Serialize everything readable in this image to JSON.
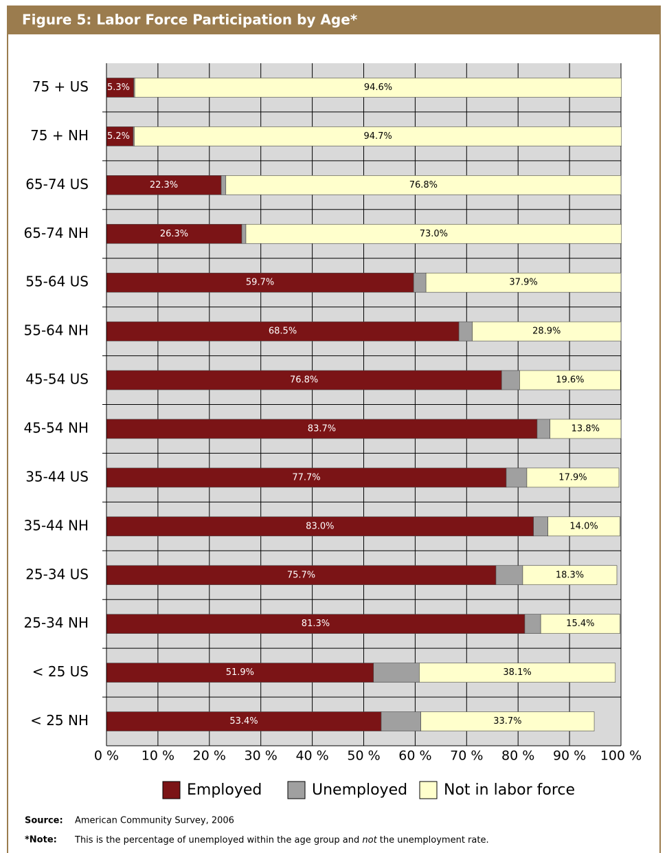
{
  "chart_data": {
    "type": "stacked_barh",
    "title": "Figure 5: Labor Force Participation by Age*",
    "categories": [
      "75 + US",
      "75 + NH",
      "65-74 US",
      "65-74 NH",
      "55-64 US",
      "55-64 NH",
      "45-54 US",
      "45-54 NH",
      "35-44 US",
      "35-44 NH",
      "25-34 US",
      "25-34 NH",
      "< 25 US",
      "< 25 NH"
    ],
    "series": [
      {
        "name": "Employed",
        "color": "#7b1416",
        "values": [
          5.3,
          5.2,
          22.3,
          26.3,
          59.7,
          68.5,
          76.8,
          83.7,
          77.7,
          83.0,
          75.7,
          81.3,
          51.9,
          53.4
        ],
        "value_labels": [
          "5.3%",
          "5.2%",
          "22.3%",
          "26.3%",
          "59.7%",
          "68.5%",
          "76.8%",
          "83.7%",
          "77.7%",
          "83.0%",
          "75.7%",
          "81.3%",
          "51.9%",
          "53.4%"
        ]
      },
      {
        "name": "Unemployed",
        "color": "#a0a0a0",
        "values": [
          0.2,
          0.2,
          0.9,
          0.8,
          2.4,
          2.6,
          3.5,
          2.5,
          4.0,
          2.8,
          5.2,
          3.1,
          8.9,
          7.7
        ],
        "value_labels": [
          "0.2%",
          "0.2%",
          "0.9%",
          "0.8%",
          "2.4%",
          "2.6%",
          "3.5%",
          "2.5%",
          "4.0%",
          "2.8%",
          "5.2%",
          "3.1%",
          "8.9%",
          "7.7%"
        ]
      },
      {
        "name": "Not in labor force",
        "color": "#ffffcc",
        "values": [
          94.6,
          94.7,
          76.8,
          73.0,
          37.9,
          28.9,
          19.6,
          13.8,
          17.9,
          14.0,
          18.3,
          15.4,
          38.1,
          33.7
        ],
        "value_labels": [
          "94.6%",
          "94.7%",
          "76.8%",
          "73.0%",
          "37.9%",
          "28.9%",
          "19.6%",
          "13.8%",
          "17.9%",
          "14.0%",
          "18.3%",
          "15.4%",
          "38.1%",
          "33.7%"
        ]
      }
    ],
    "xlim": [
      0,
      100
    ],
    "xticks": [
      {
        "value": 0,
        "label": "0 %"
      },
      {
        "value": 10,
        "label": "10 %"
      },
      {
        "value": 20,
        "label": "20 %"
      },
      {
        "value": 30,
        "label": "30 %"
      },
      {
        "value": 40,
        "label": "40 %"
      },
      {
        "value": 50,
        "label": "50 %"
      },
      {
        "value": 60,
        "label": "60 %"
      },
      {
        "value": 70,
        "label": "70 %"
      },
      {
        "value": 80,
        "label": "80 %"
      },
      {
        "value": 90,
        "label": "90 %"
      },
      {
        "value": 100,
        "label": "100 %"
      }
    ],
    "grid": true,
    "legend": "bottom",
    "source_label": "Source:",
    "source": "American Community Survey, 2006",
    "note_label": "*Note:",
    "note_parts": [
      "This is the percentage of unemployed within the age group and ",
      "not",
      " the unemployment rate."
    ]
  }
}
